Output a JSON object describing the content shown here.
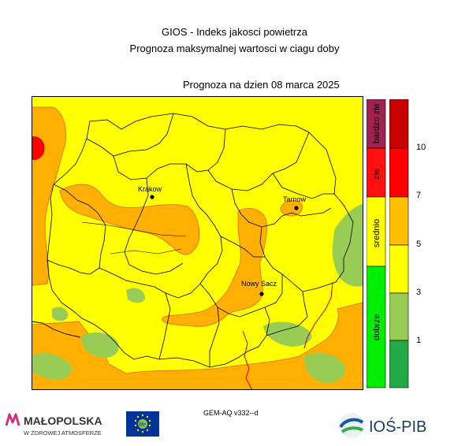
{
  "header": {
    "title_line1": "GIOS - Indeks jakosci powietrza",
    "title_line2": "Prognoza maksymalnej wartosci w ciagu doby",
    "forecast_label": "Prognoza na dzien  08 marca 2025"
  },
  "map": {
    "cities": [
      {
        "name": "Krakow"
      },
      {
        "name": "Tarnow"
      },
      {
        "name": "Nowy Sacz"
      }
    ]
  },
  "legend": {
    "categories": [
      {
        "label": "bardzo złe",
        "color": "#a02250"
      },
      {
        "label": "złe",
        "color": "#ff1010"
      },
      {
        "label": "srednio",
        "color": "#ffff00"
      },
      {
        "label": "dobrze",
        "color": "#00ee00"
      }
    ],
    "scale_colors": [
      "#c80000",
      "#ff0000",
      "#ffbf00",
      "#ffff00",
      "#99cc55",
      "#22aa44"
    ],
    "scale_values": [
      "10",
      "7",
      "5",
      "3",
      "1"
    ]
  },
  "footer": {
    "model": "GEM-AQ v332--d",
    "logo_malopolska_line1": "MAŁOPOLSKA",
    "logo_malopolska_line2": "W ZDROWEJ ATMOSFERZE",
    "logo_ios": "IOŚ-PIB",
    "logo_eu": "life"
  }
}
